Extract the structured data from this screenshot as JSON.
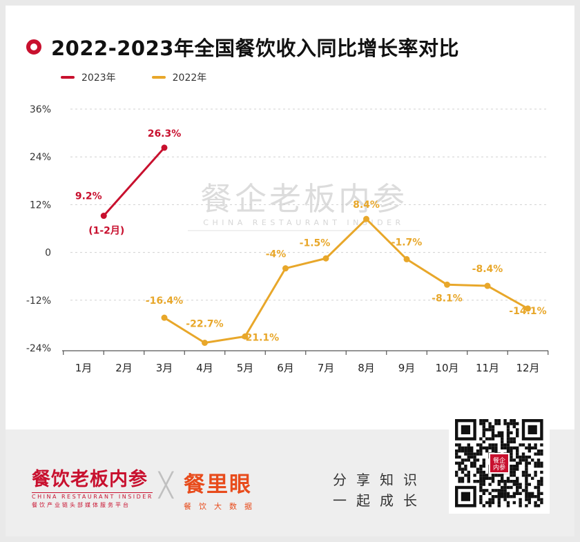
{
  "title": "2022-2023年全国餐饮收入同比增长率对比",
  "legend": [
    {
      "label": "2023年",
      "color": "#c8102e"
    },
    {
      "label": "2022年",
      "color": "#e8a72a"
    }
  ],
  "watermark": {
    "cn": "餐企老板内参",
    "en": "CHINA RESTAURANT INSIDER"
  },
  "chart_data": {
    "type": "line",
    "x": [
      "1月",
      "2月",
      "3月",
      "4月",
      "5月",
      "6月",
      "7月",
      "8月",
      "9月",
      "10月",
      "11月",
      "12月"
    ],
    "yticks": [
      "36%",
      "24%",
      "12%",
      "0",
      "-12%",
      "-24%"
    ],
    "ylim": [
      -24,
      36
    ],
    "grid": true,
    "legend_position": "top-left",
    "series": [
      {
        "name": "2023年",
        "color": "#c8102e",
        "points": [
          {
            "x": 1.5,
            "y": 9.2,
            "label": "9.2%",
            "note": "(1-2月)"
          },
          {
            "x": 3,
            "y": 26.3,
            "label": "26.3%"
          }
        ]
      },
      {
        "name": "2022年",
        "color": "#e8a72a",
        "points": [
          {
            "x": 3,
            "y": -16.4,
            "label": "-16.4%"
          },
          {
            "x": 4,
            "y": -22.7,
            "label": "-22.7%"
          },
          {
            "x": 5,
            "y": -21.1,
            "label": "-21.1%"
          },
          {
            "x": 6,
            "y": -4,
            "label": "-4%"
          },
          {
            "x": 7,
            "y": -1.5,
            "label": "-1.5%"
          },
          {
            "x": 8,
            "y": 8.4,
            "label": "8.4%"
          },
          {
            "x": 9,
            "y": -1.7,
            "label": "-1.7%"
          },
          {
            "x": 10,
            "y": -8.1,
            "label": "-8.1%"
          },
          {
            "x": 11,
            "y": -8.4,
            "label": "-8.4%"
          },
          {
            "x": 12,
            "y": -14.1,
            "label": "-14.1%"
          }
        ]
      }
    ]
  },
  "footer": {
    "brand1": {
      "cn": "餐饮老板内参",
      "en": "CHINA RESTAURANT INSIDER",
      "sub": "餐饮产业链头部媒体服务平台"
    },
    "cross": "╳",
    "brand2": {
      "cn": "餐里眼",
      "sub": "餐饮大数据"
    },
    "slogan": [
      "分享知识",
      "一起成长"
    ],
    "qr_logo": "餐企内参"
  }
}
